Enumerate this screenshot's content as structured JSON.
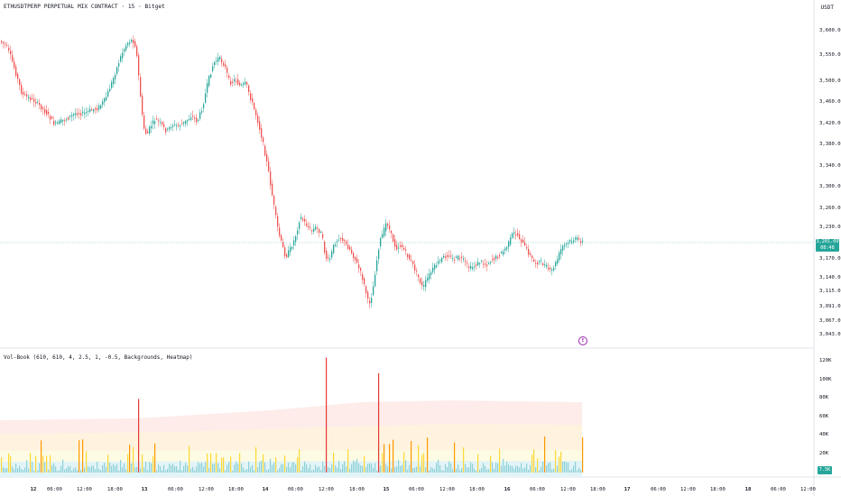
{
  "header": {
    "symbol_title": "ETHUSDTPERP PERPETUAL MIX CONTRACT · 15 · Bitget",
    "currency": "USDT"
  },
  "price_axis": [
    "3,600.00",
    "3,550.00",
    "3,500.00",
    "3,460.00",
    "3,420.00",
    "3,380.00",
    "3,340.00",
    "3,300.00",
    "3,260.00",
    "3,230.00",
    "3,170.00",
    "3,140.00",
    "3,115.00",
    "3,091.00",
    "3,067.00",
    "3,043.00"
  ],
  "current_price": {
    "price": "3,201.09",
    "countdown": "08:48"
  },
  "indicator": {
    "label": "Vol-Book (610, 610, 4, 2.5, 1, -0.5, Backgrounds, Heatmap)",
    "axis": [
      "120K",
      "100K",
      "80K",
      "60K",
      "40K",
      "20K"
    ],
    "current_value": "7.5K"
  },
  "event_marker": {
    "glyph": "E"
  },
  "time_axis": [
    "12",
    "06:00",
    "12:00",
    "18:00",
    "13",
    "06:00",
    "12:00",
    "18:00",
    "14",
    "06:00",
    "12:00",
    "18:00",
    "15",
    "06:00",
    "12:00",
    "18:00",
    "16",
    "06:00",
    "12:00",
    "18:00",
    "17",
    "06:00",
    "12:00",
    "18:00",
    "18",
    "06:00",
    "12:00"
  ],
  "colors": {
    "up": "#26a69a",
    "down": "#ef5350",
    "current_line": "#26a69a",
    "extreme_vol": "#e53935",
    "high_vol": "#ff9800",
    "mid_vol": "#fdd835",
    "low_vol": "#8ed1d8"
  }
}
